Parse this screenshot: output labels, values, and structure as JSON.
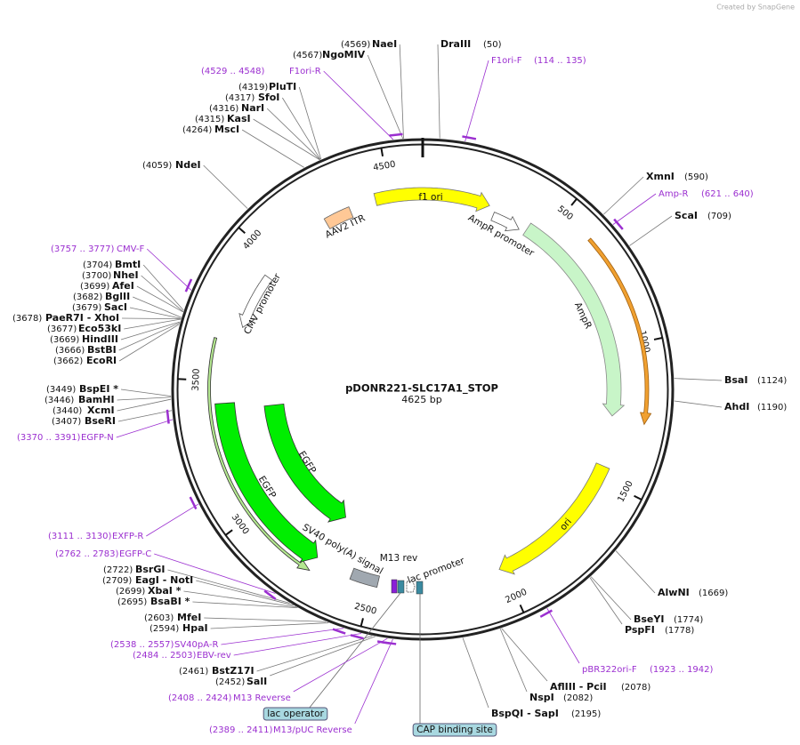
{
  "watermark": "Created by SnapGene",
  "plasmid": {
    "name": "pDONR221-SLC17A1_STOP",
    "length_label": "4625 bp",
    "length": 4625
  },
  "ticks": [
    500,
    1000,
    1500,
    2000,
    2500,
    3000,
    3500,
    4000,
    4500
  ],
  "enzymes": [
    {
      "name": "NaeI",
      "position": "(4569)"
    },
    {
      "name": "DraIII",
      "position": "(50)"
    },
    {
      "name": "NgoMIV",
      "position": "(4567)"
    },
    {
      "name": "PluTI",
      "position": "(4319)"
    },
    {
      "name": "SfoI",
      "position": "(4317)"
    },
    {
      "name": "NarI",
      "position": "(4316)"
    },
    {
      "name": "KasI",
      "position": "(4315)"
    },
    {
      "name": "MscI",
      "position": "(4264)"
    },
    {
      "name": "NdeI",
      "position": "(4059)"
    },
    {
      "name": "XmnI",
      "position": "(590)"
    },
    {
      "name": "ScaI",
      "position": "(709)"
    },
    {
      "name": "BmtI",
      "position": "(3704)"
    },
    {
      "name": "NheI",
      "position": "(3700)"
    },
    {
      "name": "AfeI",
      "position": "(3699)"
    },
    {
      "name": "BglII",
      "position": "(3682)"
    },
    {
      "name": "SacI",
      "position": "(3679)"
    },
    {
      "name": "PaeR7I  - XhoI",
      "position": "(3678)"
    },
    {
      "name": "Eco53kI",
      "position": "(3677)"
    },
    {
      "name": "HindIII",
      "position": "(3669)"
    },
    {
      "name": "BstBI",
      "position": "(3666)"
    },
    {
      "name": "EcoRI",
      "position": "(3662)"
    },
    {
      "name": "BsaI",
      "position": "(1124)"
    },
    {
      "name": "BspEI *",
      "position": "(3449)"
    },
    {
      "name": "BamHI",
      "position": "(3446)"
    },
    {
      "name": "AhdI",
      "position": "(1190)"
    },
    {
      "name": "XcmI",
      "position": "(3440)"
    },
    {
      "name": "BseRI",
      "position": "(3407)"
    },
    {
      "name": "BsrGI",
      "position": "(2722)"
    },
    {
      "name": "EagI  - NotI",
      "position": "(2709)"
    },
    {
      "name": "XbaI *",
      "position": "(2699)"
    },
    {
      "name": "BsaBI *",
      "position": "(2695)"
    },
    {
      "name": "AlwNI",
      "position": "(1669)"
    },
    {
      "name": "MfeI",
      "position": "(2603)"
    },
    {
      "name": "BseYI",
      "position": "(1774)"
    },
    {
      "name": "HpaI",
      "position": "(2594)"
    },
    {
      "name": "PspFI",
      "position": "(1778)"
    },
    {
      "name": "BstZ17I",
      "position": "(2461)"
    },
    {
      "name": "SalI",
      "position": "(2452)"
    },
    {
      "name": "AflIII  - PciI",
      "position": "(2078)"
    },
    {
      "name": "NspI",
      "position": "(2082)"
    },
    {
      "name": "BspQI  - SapI",
      "position": "(2195)"
    }
  ],
  "primers": [
    {
      "name": "F1ori-R",
      "position": "(4529 .. 4548)"
    },
    {
      "name": "F1ori-F",
      "position": "(114 .. 135)"
    },
    {
      "name": "Amp-R",
      "position": "(621 .. 640)"
    },
    {
      "name": "CMV-F",
      "position": "(3757 .. 3777)"
    },
    {
      "name": "EGFP-N",
      "position": "(3370 .. 3391)"
    },
    {
      "name": "EXFP-R",
      "position": "(3111 .. 3130)"
    },
    {
      "name": "EGFP-C",
      "position": "(2762 .. 2783)"
    },
    {
      "name": "SV40pA-R",
      "position": "(2538 .. 2557)"
    },
    {
      "name": "EBV-rev",
      "position": "(2484 .. 2503)"
    },
    {
      "name": "M13 Reverse",
      "position": "(2408 .. 2424)"
    },
    {
      "name": "pBR322ori-F",
      "position": "(1923 .. 1942)"
    },
    {
      "name": "M13/pUC Reverse",
      "position": "(2389 .. 2411)"
    }
  ],
  "features": [
    {
      "label": "f1 ori"
    },
    {
      "label": "AmpR promoter"
    },
    {
      "label": "AmpR"
    },
    {
      "label": "ori"
    },
    {
      "label": "AAV2 ITR"
    },
    {
      "label": "CMV promoter"
    },
    {
      "label": "EGFP"
    },
    {
      "label": "EGFP"
    },
    {
      "label": "SV40 poly(A) signal"
    },
    {
      "label": "M13 rev"
    },
    {
      "label": "lac promoter"
    },
    {
      "label": "lac operator"
    },
    {
      "label": "CAP binding site"
    }
  ]
}
